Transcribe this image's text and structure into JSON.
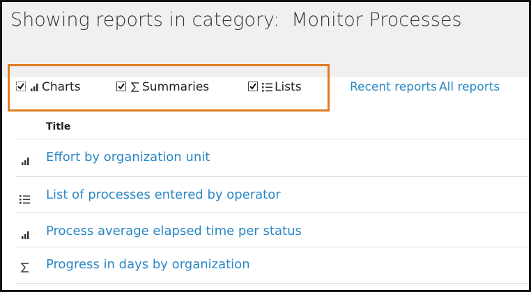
{
  "header": {
    "title": "Showing reports in category:  Monitor Processes"
  },
  "filters": [
    "Charts",
    "Summaries",
    "Lists"
  ],
  "links": [
    "Recent reports",
    "All reports"
  ],
  "table": {
    "header": "Title",
    "rows": [
      "Effort by organization unit",
      "List of processes entered by operator",
      "Process average elapsed time per status",
      "Progress in days by organization"
    ]
  }
}
